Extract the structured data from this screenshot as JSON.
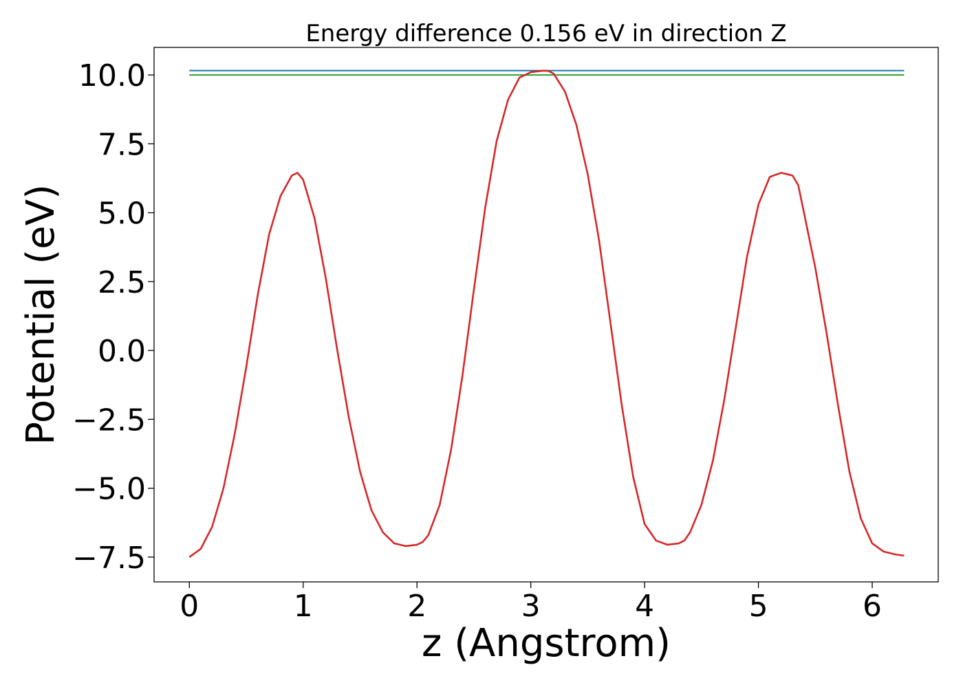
{
  "chart_data": {
    "type": "line",
    "title": "Energy difference 0.156 eV in direction Z",
    "xlabel": "z (Angstrom)",
    "ylabel": "Potential (eV)",
    "xlim": [
      -0.31,
      6.58
    ],
    "ylim": [
      -8.4,
      11.0
    ],
    "xticks": [
      0,
      1,
      2,
      3,
      4,
      5,
      6
    ],
    "xtick_labels": [
      "0",
      "1",
      "2",
      "3",
      "4",
      "5",
      "6"
    ],
    "yticks": [
      -7.5,
      -5.0,
      -2.5,
      0.0,
      2.5,
      5.0,
      7.5,
      10.0
    ],
    "ytick_labels": [
      "−7.5",
      "−5.0",
      "−2.5",
      "0.0",
      "2.5",
      "5.0",
      "7.5",
      "10.0"
    ],
    "grid": false,
    "series": [
      {
        "color": "#1f77b4",
        "x": [
          0,
          6.28
        ],
        "y": [
          10.16,
          10.16
        ]
      },
      {
        "color": "#2ca02c",
        "x": [
          0,
          6.28
        ],
        "y": [
          10.0,
          10.0
        ]
      },
      {
        "color": "#d62728",
        "x": [
          0.0,
          0.1,
          0.2,
          0.3,
          0.4,
          0.5,
          0.6,
          0.7,
          0.8,
          0.9,
          0.95,
          1.0,
          1.1,
          1.2,
          1.3,
          1.4,
          1.5,
          1.6,
          1.7,
          1.8,
          1.9,
          2.0,
          2.05,
          2.1,
          2.2,
          2.3,
          2.4,
          2.5,
          2.6,
          2.7,
          2.8,
          2.9,
          3.0,
          3.1,
          3.15,
          3.2,
          3.3,
          3.4,
          3.5,
          3.6,
          3.7,
          3.8,
          3.9,
          4.0,
          4.1,
          4.2,
          4.3,
          4.35,
          4.4,
          4.5,
          4.6,
          4.7,
          4.8,
          4.9,
          5.0,
          5.1,
          5.2,
          5.3,
          5.35,
          5.4,
          5.5,
          5.6,
          5.7,
          5.8,
          5.9,
          6.0,
          6.1,
          6.2,
          6.28
        ],
        "y": [
          -7.5,
          -7.2,
          -6.4,
          -5.0,
          -3.0,
          -0.6,
          2.0,
          4.2,
          5.6,
          6.35,
          6.45,
          6.2,
          4.8,
          2.6,
          0.0,
          -2.4,
          -4.4,
          -5.8,
          -6.6,
          -7.0,
          -7.1,
          -7.05,
          -6.95,
          -6.7,
          -5.6,
          -3.6,
          -0.9,
          2.2,
          5.2,
          7.6,
          9.1,
          9.9,
          10.1,
          10.15,
          10.15,
          10.05,
          9.4,
          8.2,
          6.4,
          4.0,
          1.0,
          -2.0,
          -4.6,
          -6.3,
          -6.9,
          -7.05,
          -7.0,
          -6.9,
          -6.6,
          -5.6,
          -4.0,
          -1.8,
          0.8,
          3.4,
          5.3,
          6.3,
          6.45,
          6.35,
          6.0,
          5.0,
          3.0,
          0.6,
          -2.0,
          -4.4,
          -6.1,
          -7.0,
          -7.3,
          -7.4,
          -7.45
        ]
      }
    ]
  }
}
